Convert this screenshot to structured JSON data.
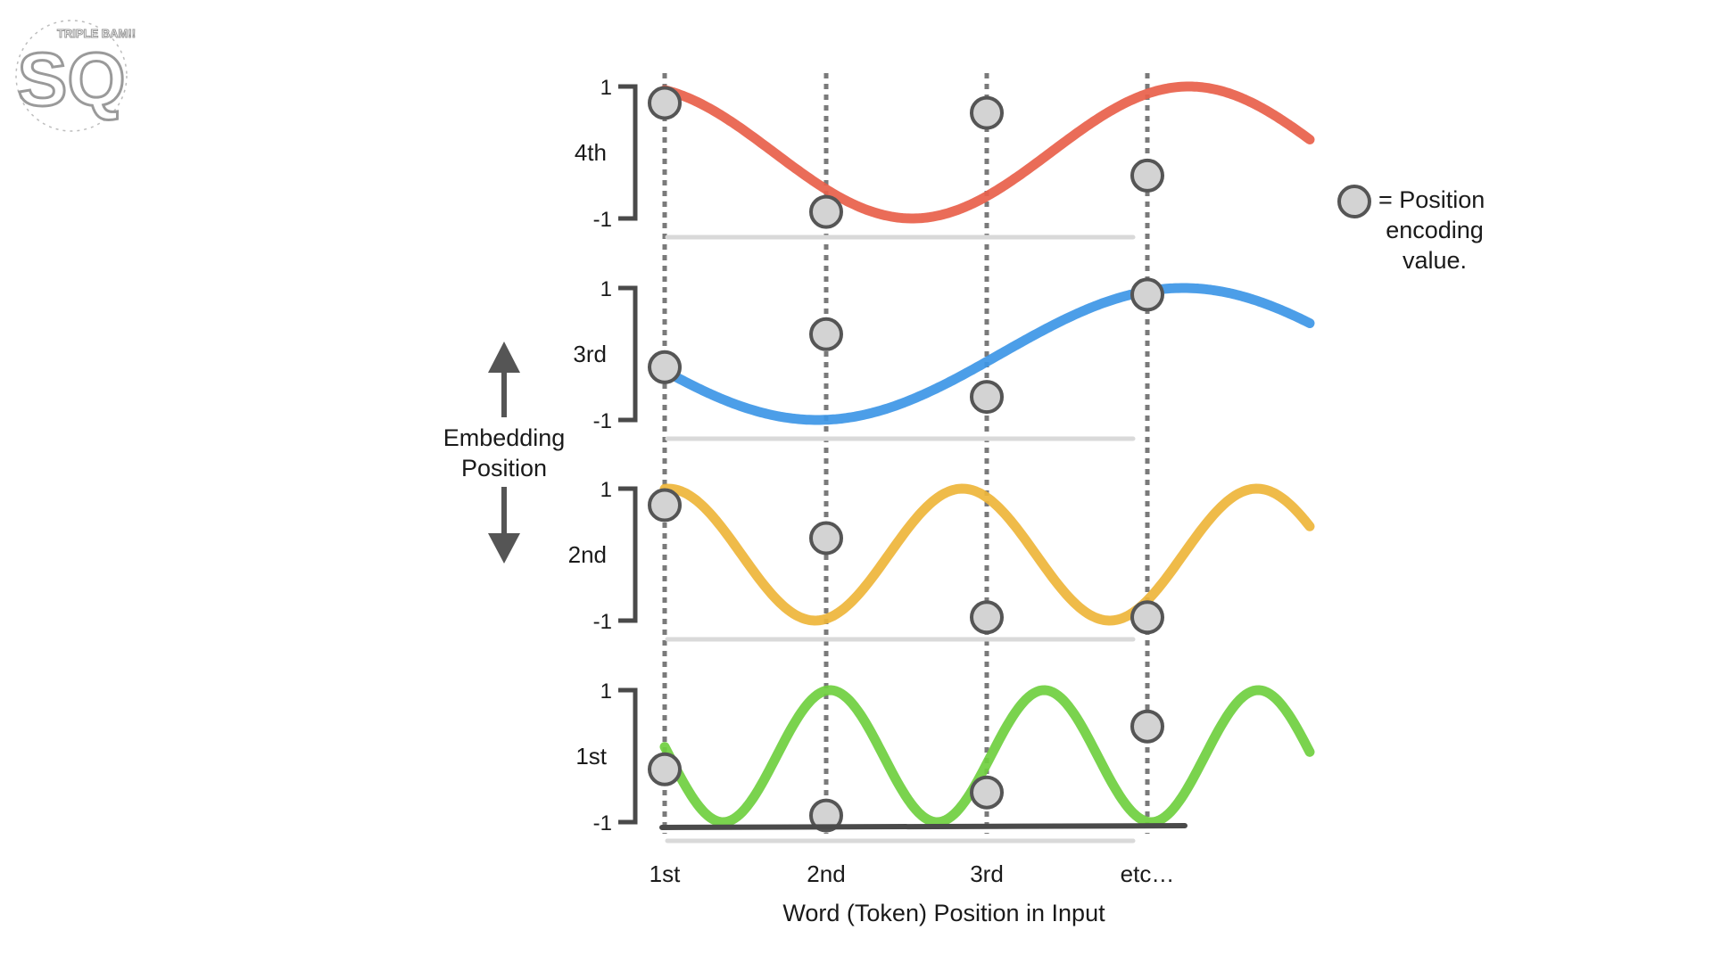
{
  "logo": {
    "text": "SQ",
    "tagline": "TRIPLE BAM!!"
  },
  "y_axis_title": [
    "Embedding",
    "Position"
  ],
  "x_axis_title": "Word (Token) Position in Input",
  "x_tick_labels": [
    "1st",
    "2nd",
    "3rd",
    "etc…"
  ],
  "legend": {
    "lines": [
      "= Position",
      "encoding",
      "value."
    ]
  },
  "panels": [
    {
      "label": "4th",
      "y_max": "1",
      "y_min": "-1",
      "color": "#e8604a",
      "points": [
        0.75,
        -0.9,
        0.6,
        -0.35
      ]
    },
    {
      "label": "3rd",
      "y_max": "1",
      "y_min": "-1",
      "color": "#3d96e6",
      "points": [
        -0.2,
        0.3,
        -0.65,
        0.9
      ]
    },
    {
      "label": "2nd",
      "y_max": "1",
      "y_min": "-1",
      "color": "#eeb53a",
      "points": [
        0.75,
        0.25,
        -0.95,
        -0.95
      ]
    },
    {
      "label": "1st",
      "y_max": "1",
      "y_min": "-1",
      "color": "#6fcf3f",
      "points": [
        -0.2,
        -0.9,
        -0.55,
        0.45
      ]
    }
  ],
  "colors": {
    "axis": "#4a4a4a",
    "marker_fill": "#d3d3d3",
    "marker_stroke": "#555555",
    "guide": "#7a7a7a"
  }
}
